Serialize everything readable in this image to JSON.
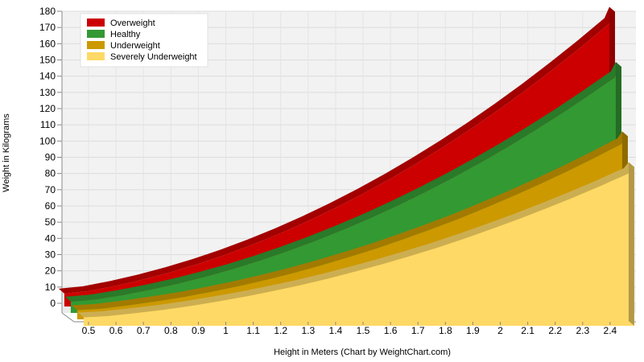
{
  "chart_data": {
    "type": "area",
    "title": "",
    "xlabel": "Height in Meters   (Chart by WeightChart.com)",
    "ylabel": "Weight in Kilograms",
    "x": [
      0.5,
      0.6,
      0.7,
      0.8,
      0.9,
      1.0,
      1.1,
      1.2,
      1.3,
      1.4,
      1.5,
      1.6,
      1.7,
      1.8,
      1.9,
      2.0,
      2.1,
      2.2,
      2.3,
      2.4
    ],
    "xticks": [
      "0.5",
      "0.6",
      "0.7",
      "0.8",
      "0.9",
      "1",
      "1.1",
      "1.2",
      "1.3",
      "1.4",
      "1.5",
      "1.6",
      "1.7",
      "1.8",
      "1.9",
      "2",
      "2.1",
      "2.2",
      "2.3",
      "2.4"
    ],
    "ylim": [
      0,
      180
    ],
    "yticks": [
      0,
      10,
      20,
      30,
      40,
      50,
      60,
      70,
      80,
      90,
      100,
      110,
      120,
      130,
      140,
      150,
      160,
      170,
      180
    ],
    "grid": true,
    "legend_position": "top-left",
    "series": [
      {
        "name": "Overweight",
        "color": "#cc0000",
        "values": [
          7.5,
          10.8,
          14.7,
          19.2,
          24.3,
          30.0,
          36.3,
          43.2,
          50.7,
          58.8,
          67.5,
          76.8,
          86.7,
          97.2,
          108.3,
          120.0,
          132.3,
          145.2,
          158.7,
          172.8
        ]
      },
      {
        "name": "Healthy",
        "color": "#339933",
        "values": [
          6.25,
          9.0,
          12.25,
          16.0,
          20.25,
          25.0,
          30.25,
          36.0,
          42.25,
          49.0,
          56.25,
          64.0,
          72.25,
          81.0,
          90.25,
          100.0,
          110.25,
          121.0,
          132.25,
          144.0
        ]
      },
      {
        "name": "Underweight",
        "color": "#cc9900",
        "values": [
          4.6,
          6.7,
          9.1,
          11.8,
          15.0,
          18.5,
          22.4,
          26.6,
          31.3,
          36.3,
          41.6,
          47.4,
          53.5,
          59.9,
          66.8,
          74.0,
          81.6,
          89.5,
          97.9,
          106.6
        ]
      },
      {
        "name": "Severely Underweight",
        "color": "#ffd966",
        "values": [
          4.0,
          5.8,
          7.8,
          10.2,
          13.0,
          16.0,
          19.4,
          23.0,
          27.0,
          31.4,
          36.0,
          41.0,
          46.2,
          51.8,
          57.8,
          64.0,
          70.6,
          77.4,
          84.6,
          92.2
        ]
      }
    ]
  }
}
